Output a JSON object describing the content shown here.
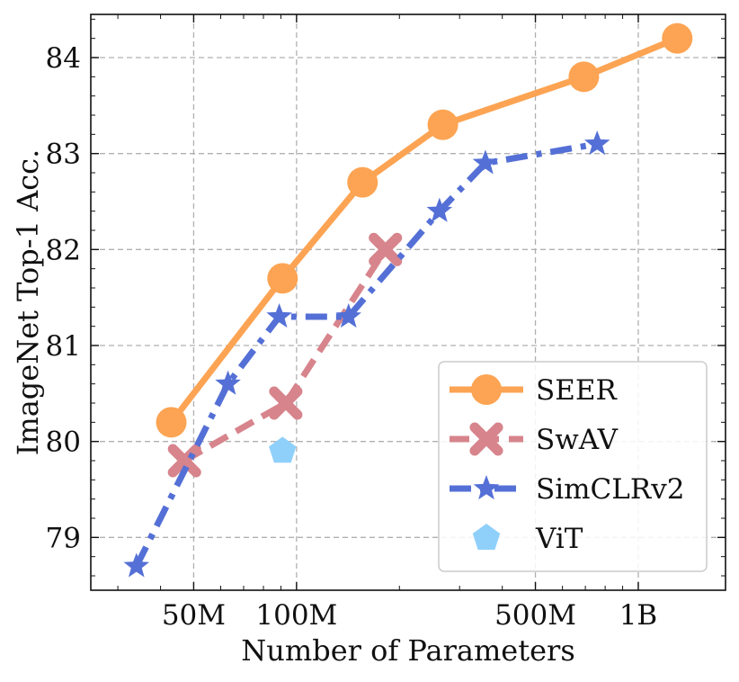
{
  "chart_data": {
    "type": "line",
    "title": "",
    "xlabel": "Number of Parameters",
    "ylabel": "ImageNet Top-1 Acc.",
    "xscale": "log",
    "xlim": [
      25000000,
      1800000000
    ],
    "ylim": [
      78.45,
      84.45
    ],
    "xticks": [
      {
        "value": 50000000,
        "label": "50M"
      },
      {
        "value": 100000000,
        "label": "100M"
      },
      {
        "value": 500000000,
        "label": "500M"
      },
      {
        "value": 1000000000,
        "label": "1B"
      }
    ],
    "yticks": [
      {
        "value": 79,
        "label": "79"
      },
      {
        "value": 80,
        "label": "80"
      },
      {
        "value": 81,
        "label": "81"
      },
      {
        "value": 82,
        "label": "82"
      },
      {
        "value": 83,
        "label": "83"
      },
      {
        "value": 84,
        "label": "84"
      }
    ],
    "grid": true,
    "legend_position": "bottom-right",
    "series": [
      {
        "name": "SEER",
        "color": "#fca453",
        "marker": "circle",
        "linestyle": "solid",
        "x": [
          43000000,
          91000000,
          156000000,
          268000000,
          693000000,
          1300000000
        ],
        "y": [
          80.2,
          81.7,
          82.7,
          83.3,
          83.8,
          84.2
        ]
      },
      {
        "name": "SwAV",
        "color": "#d7848c",
        "marker": "x",
        "linestyle": "dashed",
        "x": [
          47000000,
          93000000,
          182000000
        ],
        "y": [
          79.8,
          80.4,
          82.0
        ]
      },
      {
        "name": "SimCLRv2",
        "color": "#5470d6",
        "marker": "star",
        "linestyle": "dashdot",
        "x": [
          34000000,
          63000000,
          89000000,
          142000000,
          262000000,
          357000000,
          758000000
        ],
        "y": [
          78.7,
          80.6,
          81.3,
          81.3,
          82.4,
          82.9,
          83.1
        ]
      },
      {
        "name": "ViT",
        "color": "#8fd0fb",
        "marker": "pentagon",
        "linestyle": "none",
        "x": [
          91000000
        ],
        "y": [
          79.9
        ]
      }
    ]
  }
}
